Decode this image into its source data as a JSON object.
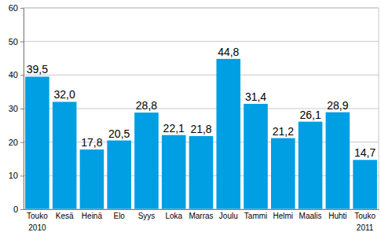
{
  "chart_data": {
    "type": "bar",
    "categories": [
      "Touko\n2010",
      "Kesä",
      "Heinä",
      "Elo",
      "Syys",
      "Loka",
      "Marras",
      "Joulu",
      "Tammi",
      "Helmi",
      "Maalis",
      "Huhti",
      "Touko\n2011"
    ],
    "values": [
      39.5,
      32.0,
      17.8,
      20.5,
      28.8,
      22.1,
      21.8,
      44.8,
      31.4,
      21.2,
      26.1,
      28.9,
      14.7
    ],
    "value_labels": [
      "39,5",
      "32,0",
      "17,8",
      "20,5",
      "28,8",
      "22,1",
      "21,8",
      "44,8",
      "31,4",
      "21,2",
      "26,1",
      "28,9",
      "14,7"
    ],
    "color": "#009fe3",
    "ylim": [
      0,
      60
    ],
    "yticks": [
      0,
      10,
      20,
      30,
      40,
      50,
      60
    ],
    "grid": true,
    "data_labels": true
  }
}
